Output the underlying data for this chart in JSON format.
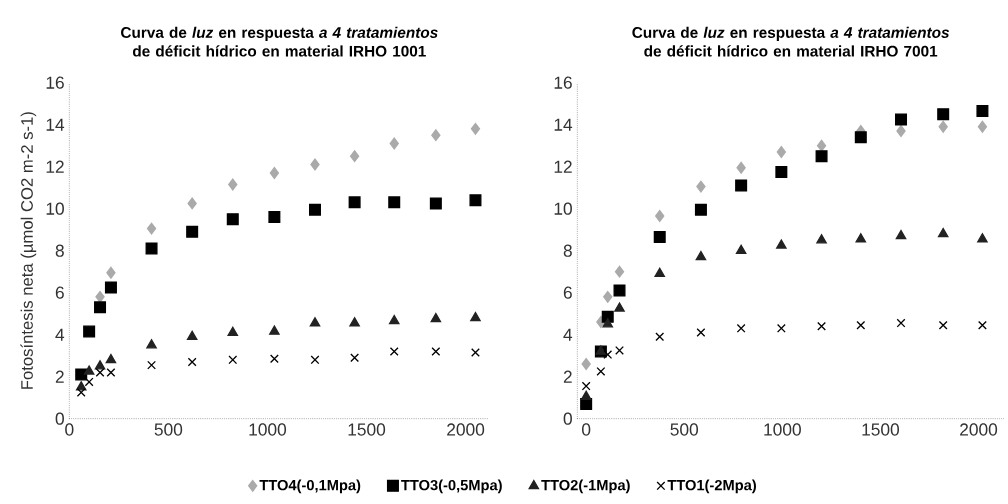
{
  "chart_data": [
    {
      "type": "scatter",
      "title": "Curva de *luz* en respuesta *a 4 tratamientos* de déficit hídrico en material IRHO 1001",
      "ylabel": "Fotosíntesis neta (µmol CO2 m-2 s-1)",
      "x": [
        60,
        100,
        155,
        210,
        415,
        620,
        825,
        1035,
        1240,
        1440,
        1640,
        1850,
        2050
      ],
      "xlim": [
        0,
        2120
      ],
      "ylim": [
        0,
        16
      ],
      "xticks": [
        0,
        500,
        1000,
        1500,
        2000
      ],
      "yticks": [
        0,
        2,
        4,
        6,
        8,
        10,
        12,
        14,
        16
      ],
      "grid": false,
      "legend": "bottom",
      "series": [
        {
          "name": "TTO4(-0,1Mpa)",
          "color": "#aaaaaa",
          "marker": "diamond",
          "values": [
            null,
            null,
            5.8,
            6.95,
            9.05,
            10.25,
            11.15,
            11.7,
            12.1,
            12.5,
            13.1,
            13.5,
            13.8
          ]
        },
        {
          "name": "TTO3(-0,5Mpa)",
          "color": "#000000",
          "marker": "square",
          "values": [
            2.1,
            4.15,
            5.3,
            6.25,
            8.1,
            8.9,
            9.5,
            9.6,
            9.95,
            10.3,
            10.3,
            10.25,
            10.4
          ]
        },
        {
          "name": "TTO2(-1Mpa)",
          "color": "#222222",
          "marker": "triangle",
          "values": [
            1.5,
            2.25,
            2.5,
            2.8,
            3.5,
            3.9,
            4.1,
            4.15,
            4.55,
            4.55,
            4.65,
            4.75,
            4.8
          ]
        },
        {
          "name": "TTO1(-2Mpa)",
          "color": "#000000",
          "marker": "cross",
          "values": [
            1.25,
            1.75,
            2.2,
            2.2,
            2.55,
            2.7,
            2.8,
            2.85,
            2.8,
            2.9,
            3.2,
            3.2,
            3.15
          ]
        }
      ]
    },
    {
      "type": "scatter",
      "title": "Curva de *luz* en respuesta *a 4 tratamientos* de déficit hídrico en material IRHO 7001",
      "x": [
        0,
        75,
        110,
        170,
        375,
        585,
        790,
        995,
        1200,
        1400,
        1605,
        1820,
        2020
      ],
      "xlim": [
        -45,
        2130
      ],
      "ylim": [
        0,
        16
      ],
      "xticks": [
        0,
        500,
        1000,
        1500,
        2000
      ],
      "yticks": [
        0,
        2,
        4,
        6,
        8,
        10,
        12,
        14,
        16
      ],
      "grid": false,
      "series": [
        {
          "color": "#aaaaaa",
          "marker": "diamond",
          "values": [
            2.6,
            4.6,
            5.8,
            7.0,
            9.65,
            11.05,
            11.95,
            12.7,
            13.0,
            13.7,
            13.7,
            13.9,
            13.9
          ]
        },
        {
          "color": "#000000",
          "marker": "square",
          "values": [
            0.7,
            3.2,
            4.85,
            6.1,
            8.65,
            9.95,
            11.1,
            11.75,
            12.5,
            13.4,
            14.25,
            14.5,
            14.65
          ]
        },
        {
          "color": "#222222",
          "marker": "triangle",
          "values": [
            1.05,
            3.2,
            4.5,
            5.25,
            6.9,
            7.7,
            8.0,
            8.25,
            8.5,
            8.55,
            8.7,
            8.8,
            8.55
          ]
        },
        {
          "color": "#000000",
          "marker": "cross",
          "values": [
            1.55,
            2.25,
            3.05,
            3.25,
            3.9,
            4.1,
            4.3,
            4.3,
            4.4,
            4.45,
            4.55,
            4.45,
            4.45
          ]
        }
      ]
    }
  ]
}
